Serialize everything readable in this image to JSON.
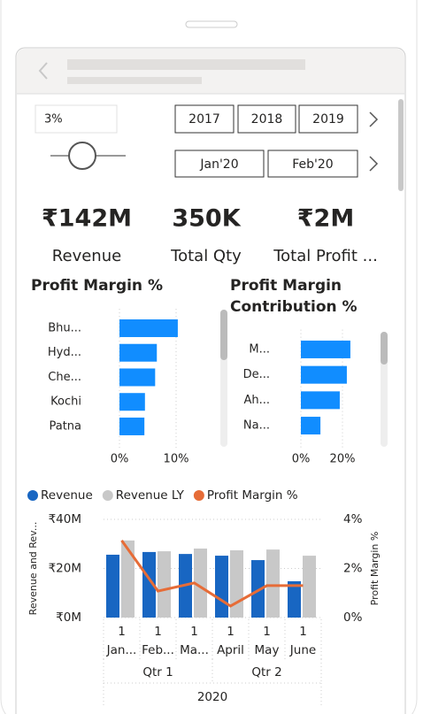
{
  "slicer": {
    "input": "3%",
    "years": [
      "2017",
      "2018",
      "2019"
    ],
    "months": [
      "Jan'20",
      "Feb'20"
    ]
  },
  "kpis": [
    {
      "value": "₹142M",
      "label": "Revenue"
    },
    {
      "value": "350K",
      "label": "Total Qty"
    },
    {
      "value": "₹2M",
      "label": "Total Profit ..."
    }
  ],
  "chart_data": [
    {
      "type": "bar",
      "orientation": "horizontal",
      "title": "Profit Margin %",
      "categories": [
        "Bhu...",
        "Hyd...",
        "Che...",
        "Kochi",
        "Patna"
      ],
      "values": [
        10.3,
        6.6,
        6.3,
        4.5,
        4.4
      ],
      "color": "#118DFF",
      "xlim": [
        0,
        11
      ],
      "xticks": [
        {
          "value": 0,
          "label": "0%"
        },
        {
          "value": 10,
          "label": "10%"
        }
      ],
      "grid": true
    },
    {
      "type": "bar",
      "orientation": "horizontal",
      "title": "Profit Margin Contribution %",
      "categories": [
        "M...",
        "De...",
        "Ah...",
        "Na..."
      ],
      "values": [
        23.8,
        22.1,
        18.7,
        9.4
      ],
      "color": "#118DFF",
      "xlim": [
        0,
        25
      ],
      "xticks": [
        {
          "value": 0,
          "label": "0%"
        },
        {
          "value": 20,
          "label": "20%"
        }
      ],
      "grid": true
    },
    {
      "type": "combo",
      "categories": [
        "Jan...",
        "Feb...",
        "Ma...",
        "April",
        "May",
        "June"
      ],
      "day_labels": [
        "1",
        "1",
        "1",
        "1",
        "1",
        "1"
      ],
      "quarters": [
        "Qtr 1",
        "Qtr 2"
      ],
      "year": "2020",
      "series": [
        {
          "name": "Revenue",
          "type": "bar",
          "color": "#1866C2",
          "values": [
            25.6,
            26.7,
            25.9,
            25.2,
            23.4,
            14.8
          ]
        },
        {
          "name": "Revenue LY",
          "type": "bar",
          "color": "#C8C8C8",
          "values": [
            31.4,
            27.0,
            28.1,
            27.4,
            27.7,
            25.2
          ]
        },
        {
          "name": "Profit Margin %",
          "type": "line",
          "axis": "y2",
          "color": "#E66C37",
          "values": [
            3.14,
            1.08,
            1.41,
            0.47,
            1.3,
            1.3
          ]
        }
      ],
      "ylim": [
        0,
        40
      ],
      "yticks": [
        {
          "value": 0,
          "label": "₹0M"
        },
        {
          "value": 20,
          "label": "₹20M"
        },
        {
          "value": 40,
          "label": "₹40M"
        }
      ],
      "y2lim": [
        0,
        4
      ],
      "y2ticks": [
        {
          "value": 0,
          "label": "0%"
        },
        {
          "value": 2,
          "label": "2%"
        },
        {
          "value": 4,
          "label": "4%"
        }
      ],
      "ylabel": "Revenue and Rev...",
      "y2label": "Profit Margin %",
      "grid": true
    }
  ]
}
